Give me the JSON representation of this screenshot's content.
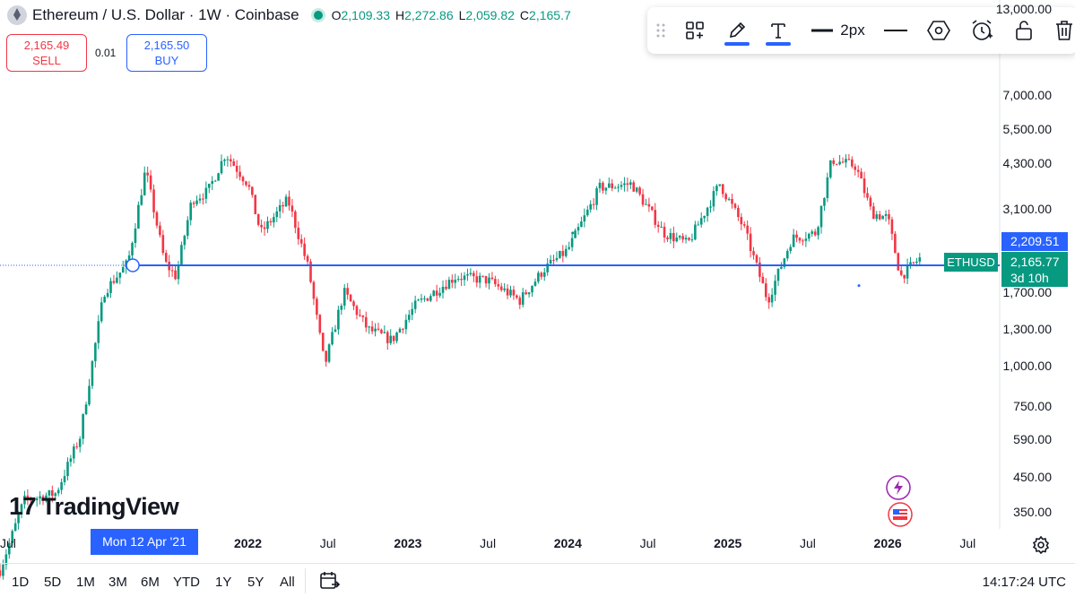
{
  "header": {
    "title": "Ethereum / U.S. Dollar · 1W · Coinbase",
    "open_label": "O",
    "open": "2,109.33",
    "high_label": "H",
    "high": "2,272.86",
    "low_label": "L",
    "low": "2,059.82",
    "close_label": "C",
    "close": "2,165.7"
  },
  "trade": {
    "sell_price": "2,165.49",
    "sell_label": "SELL",
    "spread": "0.01",
    "buy_price": "2,165.50",
    "buy_label": "BUY"
  },
  "toolbar": {
    "items": [
      "drag-handle",
      "layout",
      "pencil",
      "text",
      "line-width",
      "line-style",
      "shape",
      "alert",
      "lock",
      "delete"
    ],
    "line_width_label": "2px"
  },
  "watermark": "TradingView",
  "y_axis": {
    "labels": [
      "13,000.00",
      "7,000.00",
      "5,500.00",
      "4,300.00",
      "3,100.00",
      "1,700.00",
      "1,300.00",
      "1,000.00",
      "750.00",
      "590.00",
      "450.00",
      "350.00"
    ],
    "values": [
      13000,
      7000,
      5500,
      4300,
      3100,
      1700,
      1300,
      1000,
      750,
      590,
      450,
      350
    ],
    "price_boxes": {
      "high_price": "2,209.51",
      "last_price": "2,165.77",
      "countdown": "3d 10h"
    },
    "symbol_tag": "ETHUSD"
  },
  "x_axis": {
    "labels": [
      {
        "text": "Jul",
        "bold": false
      },
      {
        "text": "2022",
        "bold": true
      },
      {
        "text": "Jul",
        "bold": false
      },
      {
        "text": "2023",
        "bold": true
      },
      {
        "text": "Jul",
        "bold": false
      },
      {
        "text": "2024",
        "bold": true
      },
      {
        "text": "Jul",
        "bold": false
      },
      {
        "text": "2025",
        "bold": true
      },
      {
        "text": "Jul",
        "bold": false
      },
      {
        "text": "2026",
        "bold": true
      },
      {
        "text": "Jul",
        "bold": false
      }
    ],
    "date_values": [
      2020.5,
      2022.0,
      2022.5,
      2023.0,
      2023.5,
      2024.0,
      2024.5,
      2025.0,
      2025.5,
      2026.0,
      2026.5
    ],
    "crosshair_label": "Mon 12 Apr '21",
    "crosshair_date": 2021.28
  },
  "bottom_bar": {
    "ranges": [
      "1D",
      "5D",
      "1M",
      "3M",
      "6M",
      "YTD",
      "1Y",
      "5Y",
      "All"
    ],
    "time": "14:17:24 UTC"
  },
  "colors": {
    "up": "#089981",
    "down": "#f23645",
    "line": "#2962ff"
  },
  "chart_data": {
    "type": "candlestick",
    "title": "Ethereum / U.S. Dollar · 1W · Coinbase",
    "x_unit": "year (decimal)",
    "y_scale": "log",
    "ylim": [
      320,
      13000
    ],
    "xlim": [
      2020.45,
      2026.7
    ],
    "horizontal_line": 2060,
    "last_price": 2165.77,
    "anchors": [
      {
        "t": 2020.45,
        "p": 230
      },
      {
        "t": 2020.6,
        "p": 380
      },
      {
        "t": 2020.8,
        "p": 400
      },
      {
        "t": 2020.95,
        "p": 600
      },
      {
        "t": 2021.1,
        "p": 1700
      },
      {
        "t": 2021.25,
        "p": 2100
      },
      {
        "t": 2021.36,
        "p": 4100
      },
      {
        "t": 2021.48,
        "p": 2100
      },
      {
        "t": 2021.55,
        "p": 1900
      },
      {
        "t": 2021.65,
        "p": 3300
      },
      {
        "t": 2021.75,
        "p": 3500
      },
      {
        "t": 2021.86,
        "p": 4600
      },
      {
        "t": 2022.0,
        "p": 3700
      },
      {
        "t": 2022.08,
        "p": 2600
      },
      {
        "t": 2022.25,
        "p": 3300
      },
      {
        "t": 2022.38,
        "p": 2000
      },
      {
        "t": 2022.48,
        "p": 1000
      },
      {
        "t": 2022.6,
        "p": 1700
      },
      {
        "t": 2022.75,
        "p": 1300
      },
      {
        "t": 2022.9,
        "p": 1200
      },
      {
        "t": 2023.05,
        "p": 1550
      },
      {
        "t": 2023.3,
        "p": 1900
      },
      {
        "t": 2023.5,
        "p": 1850
      },
      {
        "t": 2023.7,
        "p": 1600
      },
      {
        "t": 2023.85,
        "p": 2000
      },
      {
        "t": 2024.0,
        "p": 2300
      },
      {
        "t": 2024.2,
        "p": 3600
      },
      {
        "t": 2024.4,
        "p": 3700
      },
      {
        "t": 2024.6,
        "p": 2600
      },
      {
        "t": 2024.75,
        "p": 2400
      },
      {
        "t": 2024.95,
        "p": 3700
      },
      {
        "t": 2025.1,
        "p": 2700
      },
      {
        "t": 2025.25,
        "p": 1600
      },
      {
        "t": 2025.4,
        "p": 2500
      },
      {
        "t": 2025.55,
        "p": 2600
      },
      {
        "t": 2025.65,
        "p": 4400
      },
      {
        "t": 2025.8,
        "p": 4200
      },
      {
        "t": 2025.9,
        "p": 3000
      },
      {
        "t": 2026.0,
        "p": 2900
      },
      {
        "t": 2026.08,
        "p": 1900
      },
      {
        "t": 2026.2,
        "p": 2165
      }
    ]
  }
}
